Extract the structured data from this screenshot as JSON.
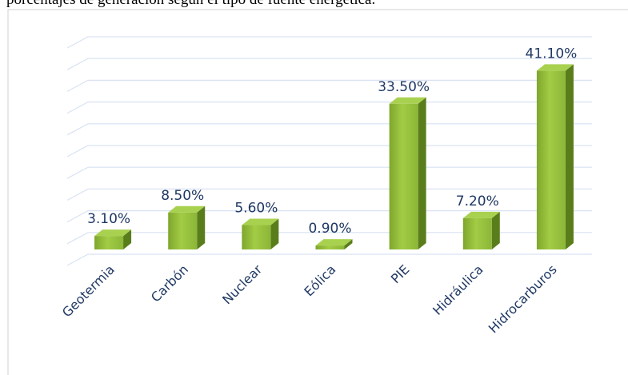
{
  "chart_data": {
    "type": "bar",
    "title": "porcentajes de generación según el tipo de fuente energética.",
    "categories": [
      "Geotermia",
      "Carbón",
      "Nuclear",
      "Eólica",
      "PIE",
      "Hidráulica",
      "Hidrocarburos"
    ],
    "values": [
      3.1,
      8.5,
      5.6,
      0.9,
      33.5,
      7.2,
      41.1
    ],
    "value_labels": [
      "3.10%",
      "8.50%",
      "5.60%",
      "0.90%",
      "33.50%",
      "7.20%",
      "41.10%"
    ],
    "color": "#8db737",
    "ylim": [
      0,
      50
    ],
    "yticks": [
      0,
      5,
      10,
      15,
      20,
      25,
      30,
      35,
      40,
      45,
      50
    ],
    "grid": true
  }
}
